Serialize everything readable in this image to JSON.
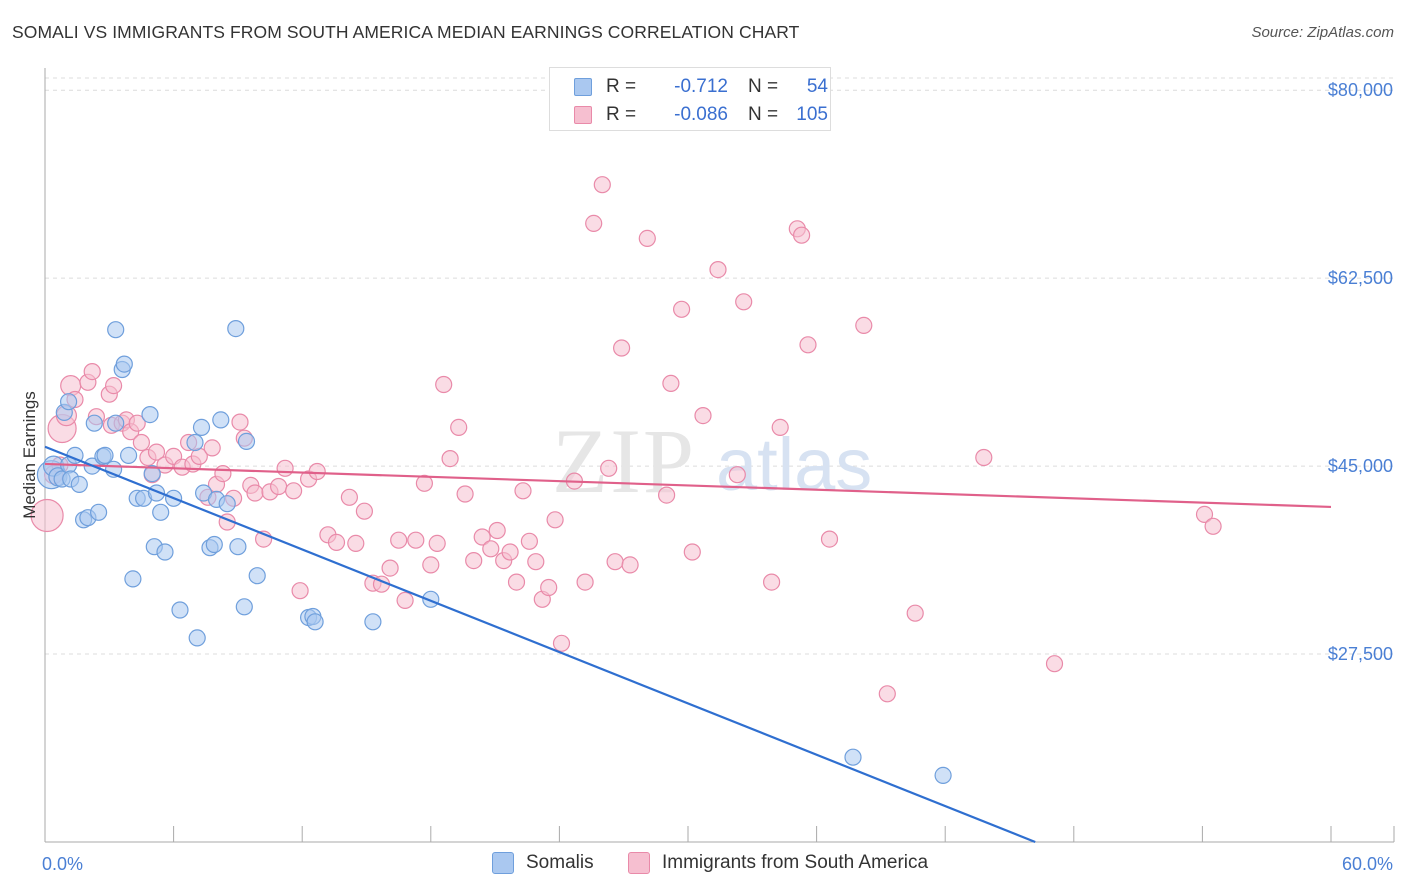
{
  "title": "SOMALI VS IMMIGRANTS FROM SOUTH AMERICA MEDIAN EARNINGS CORRELATION CHART",
  "source": "Source: ZipAtlas.com",
  "watermark": {
    "zip": "ZIP",
    "atlas": "atlas"
  },
  "legend": {
    "rows": [
      {
        "r_label": "R =",
        "r_value": "-0.712",
        "n_label": "N =",
        "n_value": "54"
      },
      {
        "r_label": "R =",
        "r_value": "-0.086",
        "n_label": "N =",
        "n_value": "105"
      }
    ]
  },
  "bottom_legend": {
    "series1": "Somalis",
    "series2": "Immigrants from South America"
  },
  "colors": {
    "somali_fill": "#aac8f0",
    "somali_stroke": "#6f9fdc",
    "somali_line": "#2f6fd0",
    "sa_fill": "#f6bfd0",
    "sa_stroke": "#e98aa9",
    "sa_line": "#e0608a",
    "tick_text": "#4a7fd4",
    "grid": "#dcdcdc"
  },
  "chart_data": {
    "type": "scatter",
    "title": "SOMALI VS IMMIGRANTS FROM SOUTH AMERICA MEDIAN EARNINGS CORRELATION CHART",
    "xlabel": "",
    "ylabel": "Median Earnings",
    "xlim": [
      0,
      60
    ],
    "ylim": [
      10000,
      83000
    ],
    "x_tick_labels": [
      "0.0%",
      "60.0%"
    ],
    "y_ticks": [
      27500,
      45000,
      62500,
      80000
    ],
    "y_tick_labels": [
      "$27,500",
      "$45,000",
      "$62,500",
      "$80,000"
    ],
    "grid": true,
    "legend_placement": "top-center",
    "series": [
      {
        "name": "Somalis",
        "r": -0.712,
        "n": 54,
        "trend": {
          "x": [
            0,
            46.2
          ],
          "y": [
            46800,
            10000
          ]
        },
        "points": [
          [
            0.3,
            44200,
            14
          ],
          [
            0.4,
            45000,
            10
          ],
          [
            0.6,
            44000,
            9
          ],
          [
            0.8,
            43800,
            8
          ],
          [
            0.9,
            50000,
            8
          ],
          [
            1.1,
            45100,
            8
          ],
          [
            1.1,
            51000,
            8
          ],
          [
            1.2,
            43800,
            8
          ],
          [
            1.4,
            46000,
            8
          ],
          [
            1.6,
            43300,
            8
          ],
          [
            1.8,
            40000,
            8
          ],
          [
            2.0,
            40200,
            8
          ],
          [
            2.2,
            45000,
            8
          ],
          [
            2.3,
            49000,
            8
          ],
          [
            2.5,
            40700,
            8
          ],
          [
            2.7,
            45900,
            8
          ],
          [
            2.8,
            46000,
            8
          ],
          [
            3.2,
            44700,
            8
          ],
          [
            3.3,
            49000,
            8
          ],
          [
            3.3,
            57700,
            8
          ],
          [
            3.6,
            54000,
            8
          ],
          [
            3.7,
            54500,
            8
          ],
          [
            3.9,
            46000,
            8
          ],
          [
            4.1,
            34500,
            8
          ],
          [
            4.3,
            42000,
            8
          ],
          [
            4.6,
            42000,
            8
          ],
          [
            4.9,
            49800,
            8
          ],
          [
            5.0,
            44300,
            8
          ],
          [
            5.1,
            37500,
            8
          ],
          [
            5.2,
            42500,
            8
          ],
          [
            5.4,
            40700,
            8
          ],
          [
            5.6,
            37000,
            8
          ],
          [
            6.0,
            42000,
            8
          ],
          [
            6.3,
            31600,
            8
          ],
          [
            7.0,
            47200,
            8
          ],
          [
            7.1,
            29000,
            8
          ],
          [
            7.3,
            48600,
            8
          ],
          [
            7.4,
            42500,
            8
          ],
          [
            7.7,
            37400,
            8
          ],
          [
            7.9,
            37700,
            8
          ],
          [
            8.0,
            41900,
            8
          ],
          [
            8.2,
            49300,
            8
          ],
          [
            8.5,
            41500,
            8
          ],
          [
            8.9,
            57800,
            8
          ],
          [
            9.0,
            37500,
            8
          ],
          [
            9.3,
            31900,
            8
          ],
          [
            9.4,
            47300,
            8
          ],
          [
            9.9,
            34800,
            8
          ],
          [
            12.3,
            30900,
            8
          ],
          [
            12.5,
            31000,
            8
          ],
          [
            12.6,
            30500,
            8
          ],
          [
            15.3,
            30500,
            8
          ],
          [
            18.0,
            32600,
            8
          ],
          [
            37.7,
            17900,
            8
          ],
          [
            41.9,
            16200,
            8
          ]
        ]
      },
      {
        "name": "Immigrants from South America",
        "r": -0.086,
        "n": 105,
        "trend": {
          "x": [
            0,
            60
          ],
          "y": [
            45200,
            41200
          ]
        },
        "points": [
          [
            0.1,
            40400,
            16
          ],
          [
            0.4,
            44200,
            9
          ],
          [
            0.7,
            45100,
            8
          ],
          [
            0.8,
            48500,
            14
          ],
          [
            1.0,
            49700,
            10
          ],
          [
            1.2,
            52500,
            10
          ],
          [
            1.4,
            51200,
            8
          ],
          [
            2.0,
            52800,
            8
          ],
          [
            2.2,
            53800,
            8
          ],
          [
            2.4,
            49600,
            8
          ],
          [
            3.0,
            51700,
            8
          ],
          [
            3.1,
            48800,
            8
          ],
          [
            3.2,
            52500,
            8
          ],
          [
            3.6,
            49000,
            8
          ],
          [
            3.8,
            49300,
            8
          ],
          [
            4.0,
            48200,
            8
          ],
          [
            4.3,
            49000,
            8
          ],
          [
            4.5,
            47200,
            8
          ],
          [
            4.8,
            45800,
            8
          ],
          [
            5.0,
            44200,
            8
          ],
          [
            5.2,
            46300,
            8
          ],
          [
            5.6,
            45100,
            8
          ],
          [
            6.0,
            45900,
            8
          ],
          [
            6.4,
            44900,
            8
          ],
          [
            6.7,
            47200,
            8
          ],
          [
            6.9,
            45200,
            8
          ],
          [
            7.2,
            45900,
            8
          ],
          [
            7.6,
            42100,
            8
          ],
          [
            7.8,
            46700,
            8
          ],
          [
            8.0,
            43300,
            8
          ],
          [
            8.3,
            44300,
            8
          ],
          [
            8.5,
            39800,
            8
          ],
          [
            8.8,
            42000,
            8
          ],
          [
            9.1,
            49100,
            8
          ],
          [
            9.3,
            47600,
            8
          ],
          [
            9.6,
            43200,
            8
          ],
          [
            9.8,
            42500,
            8
          ],
          [
            10.2,
            38200,
            8
          ],
          [
            10.5,
            42600,
            8
          ],
          [
            10.9,
            43100,
            8
          ],
          [
            11.2,
            44800,
            8
          ],
          [
            11.6,
            42700,
            8
          ],
          [
            11.9,
            33400,
            8
          ],
          [
            12.3,
            43800,
            8
          ],
          [
            12.7,
            44500,
            8
          ],
          [
            13.2,
            38600,
            8
          ],
          [
            13.6,
            37900,
            8
          ],
          [
            14.2,
            42100,
            8
          ],
          [
            14.5,
            37800,
            8
          ],
          [
            14.9,
            40800,
            8
          ],
          [
            15.3,
            34100,
            8
          ],
          [
            15.7,
            34000,
            8
          ],
          [
            16.1,
            35500,
            8
          ],
          [
            16.5,
            38100,
            8
          ],
          [
            16.8,
            32500,
            8
          ],
          [
            17.3,
            38100,
            8
          ],
          [
            17.7,
            43400,
            8
          ],
          [
            18.0,
            35800,
            8
          ],
          [
            18.3,
            37800,
            8
          ],
          [
            18.6,
            52600,
            8
          ],
          [
            18.9,
            45700,
            8
          ],
          [
            19.3,
            48600,
            8
          ],
          [
            19.6,
            42400,
            8
          ],
          [
            20.0,
            36200,
            8
          ],
          [
            20.4,
            38400,
            8
          ],
          [
            20.8,
            37300,
            8
          ],
          [
            21.1,
            39000,
            8
          ],
          [
            21.4,
            36200,
            8
          ],
          [
            21.7,
            37000,
            8
          ],
          [
            22.0,
            34200,
            8
          ],
          [
            22.3,
            42700,
            8
          ],
          [
            22.6,
            38000,
            8
          ],
          [
            22.9,
            36100,
            8
          ],
          [
            23.2,
            32600,
            8
          ],
          [
            23.5,
            33700,
            8
          ],
          [
            23.8,
            40000,
            8
          ],
          [
            24.1,
            28500,
            8
          ],
          [
            24.7,
            43600,
            8
          ],
          [
            25.2,
            34200,
            8
          ],
          [
            25.6,
            67600,
            8
          ],
          [
            26.0,
            71200,
            8
          ],
          [
            26.3,
            44800,
            8
          ],
          [
            26.6,
            36100,
            8
          ],
          [
            26.9,
            56000,
            8
          ],
          [
            27.3,
            35800,
            8
          ],
          [
            28.1,
            66200,
            8
          ],
          [
            29.0,
            42300,
            8
          ],
          [
            29.2,
            52700,
            8
          ],
          [
            29.7,
            59600,
            8
          ],
          [
            30.2,
            37000,
            8
          ],
          [
            30.7,
            49700,
            8
          ],
          [
            31.4,
            63300,
            8
          ],
          [
            32.3,
            44200,
            8
          ],
          [
            32.6,
            60300,
            8
          ],
          [
            33.9,
            34200,
            8
          ],
          [
            34.3,
            48600,
            8
          ],
          [
            35.1,
            67100,
            8
          ],
          [
            35.3,
            66500,
            8
          ],
          [
            35.6,
            56300,
            8
          ],
          [
            36.6,
            38200,
            8
          ],
          [
            38.2,
            58100,
            8
          ],
          [
            39.3,
            23800,
            8
          ],
          [
            40.6,
            31300,
            8
          ],
          [
            43.8,
            45800,
            8
          ],
          [
            47.1,
            26600,
            8
          ],
          [
            54.1,
            40500,
            8
          ],
          [
            54.5,
            39400,
            8
          ]
        ]
      }
    ]
  }
}
